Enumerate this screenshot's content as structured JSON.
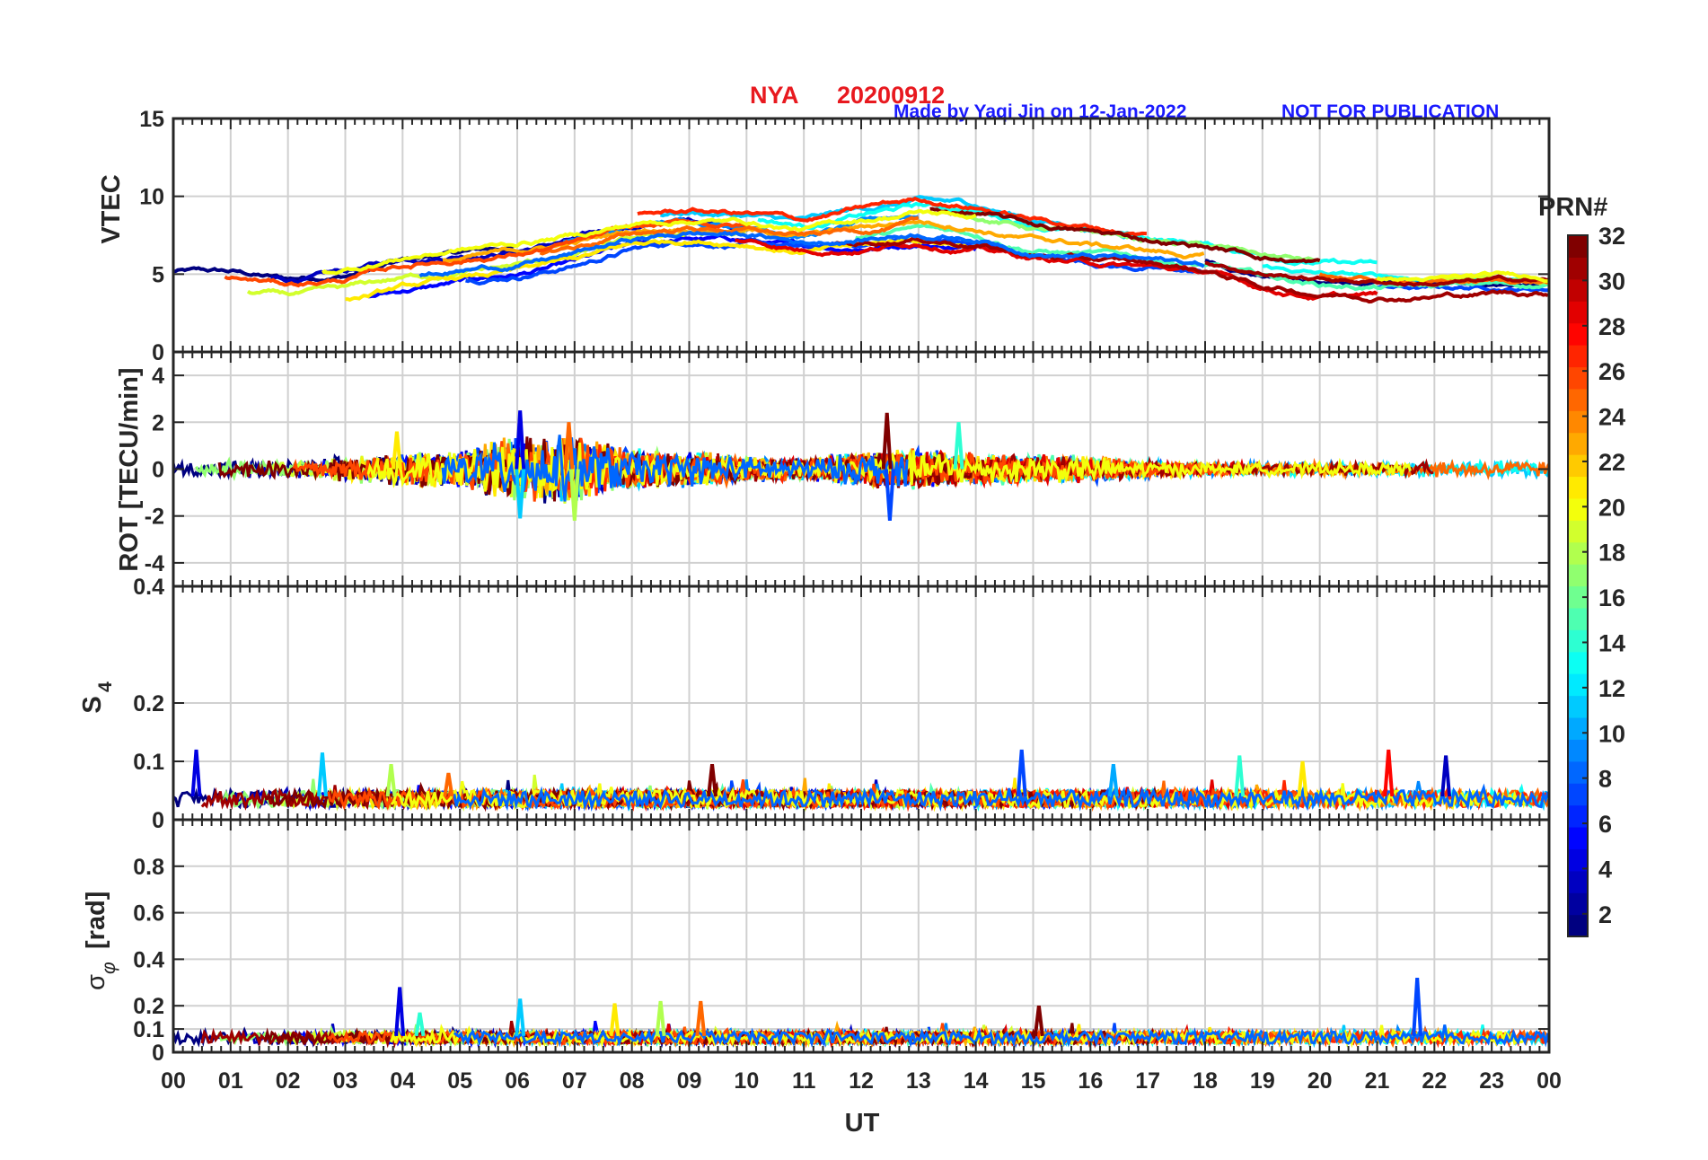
{
  "title": {
    "station": "NYA",
    "date": "20200912",
    "credit": "Made by Yaqi Jin on 12-Jan-2022",
    "notice": "NOT FOR PUBLICATION",
    "title_color": "#e8191f",
    "credit_color": "#1a1aff"
  },
  "chart_data": [
    {
      "type": "line",
      "panel": "vtec",
      "ylabel": "VTEC",
      "ylim": [
        0,
        15
      ],
      "yticks": [
        0,
        5,
        10,
        15
      ],
      "ytick_labels": [
        "0",
        "5",
        "10",
        "15"
      ],
      "grid": true,
      "series_note": "Multiple PRN traces, values around 3–10 TECU, peaking near 12–14 UT",
      "envelope": {
        "x_hours": [
          0,
          1,
          2,
          3,
          4,
          5,
          6,
          7,
          8,
          9,
          10,
          11,
          12,
          13,
          14,
          15,
          16,
          17,
          18,
          19,
          20,
          21,
          22,
          23,
          24
        ],
        "mean": [
          4.8,
          4.6,
          4.2,
          4.5,
          5.3,
          5.8,
          6.2,
          6.8,
          7.6,
          8.0,
          7.9,
          7.4,
          7.8,
          8.3,
          8.0,
          7.2,
          6.8,
          6.4,
          6.0,
          5.2,
          4.8,
          4.6,
          4.5,
          4.6,
          4.6
        ],
        "spread": [
          1.3,
          1.4,
          1.2,
          1.5,
          1.6,
          1.6,
          1.5,
          1.4,
          1.2,
          1.1,
          1.0,
          1.0,
          1.3,
          1.4,
          1.4,
          1.4,
          1.3,
          1.2,
          1.2,
          1.5,
          1.5,
          1.3,
          1.1,
          1.1,
          1.1
        ]
      }
    },
    {
      "type": "line",
      "panel": "rot",
      "ylabel": "ROT [TECU/min]",
      "ylim": [
        -5,
        5
      ],
      "yticks": [
        -4,
        -2,
        0,
        2,
        4
      ],
      "ytick_labels": [
        "-4",
        "-2",
        "0",
        "2",
        "4"
      ],
      "grid": true,
      "series_note": "Rate of TEC fluctuating around 0, mostly within ±1, spikes up to ~2.4 near 06 and 12.5 UT",
      "envelope": {
        "x_hours": [
          0,
          1,
          2,
          3,
          4,
          5,
          6,
          7,
          8,
          9,
          10,
          11,
          12,
          13,
          14,
          15,
          16,
          17,
          18,
          19,
          20,
          21,
          22,
          23,
          24
        ],
        "amplitude": [
          0.4,
          0.4,
          0.4,
          0.6,
          0.8,
          0.9,
          1.5,
          1.6,
          0.9,
          0.8,
          0.6,
          0.5,
          0.8,
          0.9,
          0.7,
          0.7,
          0.6,
          0.4,
          0.3,
          0.3,
          0.3,
          0.3,
          0.4,
          0.4,
          0.4
        ]
      },
      "spikes": [
        {
          "x": 6.05,
          "y": 2.5
        },
        {
          "x": 6.05,
          "y": -2.1
        },
        {
          "x": 7.0,
          "y": -2.2
        },
        {
          "x": 6.9,
          "y": 2.0
        },
        {
          "x": 12.45,
          "y": 2.4
        },
        {
          "x": 12.5,
          "y": -2.2
        },
        {
          "x": 13.7,
          "y": 2.0
        },
        {
          "x": 3.9,
          "y": 1.6
        }
      ]
    },
    {
      "type": "line",
      "panel": "s4",
      "ylabel": "S4",
      "ylim": [
        0,
        0.4
      ],
      "yticks": [
        0,
        0.1,
        0.2,
        0.4
      ],
      "ytick_labels": [
        "0",
        "0.1",
        "0.2",
        "0.4"
      ],
      "grid": true,
      "series_note": "Amplitude scintillation index mostly 0.02–0.06, spikes to ~0.12",
      "baseline": 0.04,
      "spikes": [
        {
          "x": 0.4,
          "y": 0.12
        },
        {
          "x": 2.6,
          "y": 0.115
        },
        {
          "x": 3.8,
          "y": 0.095
        },
        {
          "x": 4.8,
          "y": 0.08
        },
        {
          "x": 9.4,
          "y": 0.095
        },
        {
          "x": 14.8,
          "y": 0.12
        },
        {
          "x": 18.6,
          "y": 0.11
        },
        {
          "x": 19.7,
          "y": 0.1
        },
        {
          "x": 21.2,
          "y": 0.12
        },
        {
          "x": 22.2,
          "y": 0.11
        },
        {
          "x": 16.4,
          "y": 0.095
        }
      ]
    },
    {
      "type": "line",
      "panel": "sigma_phi",
      "ylabel": "σφ [rad]",
      "ylim": [
        0,
        1
      ],
      "yticks": [
        0,
        0.1,
        0.2,
        0.4,
        0.6,
        0.8
      ],
      "ytick_labels": [
        "0",
        "0.1",
        "0.2",
        "0.4",
        "0.6",
        "0.8"
      ],
      "grid": true,
      "series_note": "Phase scintillation index mostly 0.04–0.1, spikes to ~0.3",
      "baseline": 0.07,
      "spikes": [
        {
          "x": 3.95,
          "y": 0.28
        },
        {
          "x": 6.05,
          "y": 0.23
        },
        {
          "x": 8.5,
          "y": 0.22
        },
        {
          "x": 9.2,
          "y": 0.22
        },
        {
          "x": 15.1,
          "y": 0.2
        },
        {
          "x": 21.7,
          "y": 0.32
        },
        {
          "x": 4.3,
          "y": 0.17
        },
        {
          "x": 7.7,
          "y": 0.21
        }
      ]
    }
  ],
  "x_axis": {
    "label": "UT",
    "ticks": [
      "00",
      "01",
      "02",
      "03",
      "04",
      "05",
      "06",
      "07",
      "08",
      "09",
      "10",
      "11",
      "12",
      "13",
      "14",
      "15",
      "16",
      "17",
      "18",
      "19",
      "20",
      "21",
      "22",
      "23",
      "00"
    ],
    "range_hours": [
      0,
      24
    ]
  },
  "colorbar": {
    "title": "PRN#",
    "range": [
      1,
      32
    ],
    "tick_labels": [
      "2",
      "4",
      "6",
      "8",
      "10",
      "12",
      "14",
      "16",
      "18",
      "20",
      "22",
      "24",
      "26",
      "28",
      "30",
      "32"
    ],
    "colormap": "jet"
  },
  "ylabels": {
    "vtec": "VTEC",
    "rot": "ROT [TECU/min]",
    "s4_main": "S",
    "s4_sub": "4",
    "sigma_main": "σ",
    "sigma_sub": "φ",
    "sigma_unit": "[rad]"
  }
}
